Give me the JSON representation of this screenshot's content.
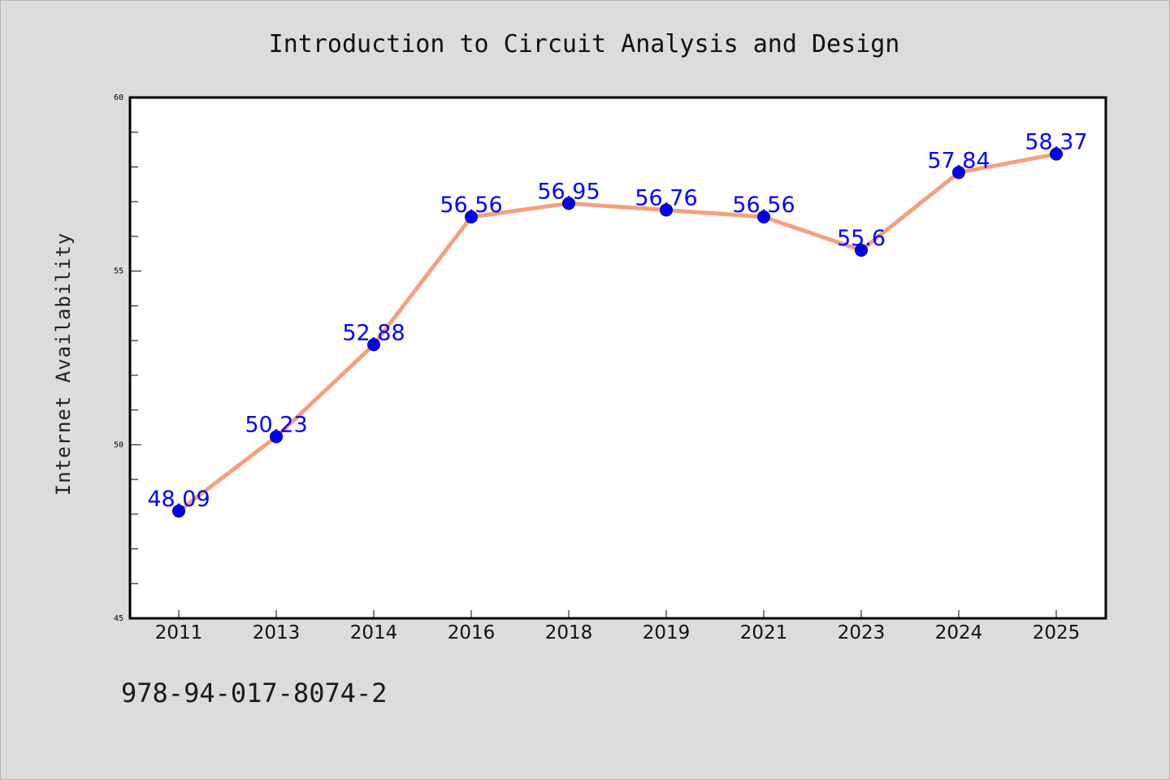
{
  "chart_data": {
    "type": "line",
    "title": "Introduction to Circuit Analysis and Design",
    "xlabel": "",
    "ylabel": "Internet Availability",
    "categories": [
      "2011",
      "2013",
      "2014",
      "2016",
      "2018",
      "2019",
      "2021",
      "2023",
      "2024",
      "2025"
    ],
    "series": [
      {
        "values": [
          48.09,
          50.23,
          52.88,
          56.56,
          56.95,
          56.76,
          56.56,
          55.6,
          57.84,
          58.37
        ],
        "data_labels": [
          "48.09",
          "50.23",
          "52.88",
          "56.56",
          "56.95",
          "56.76",
          "56.56",
          "55.6",
          "57.84",
          "58.37"
        ],
        "line_color": "#f4a07e",
        "marker_color": "#0000ee",
        "label_color": "#0000ff"
      }
    ],
    "ylim": [
      45,
      60
    ],
    "yticks": [
      "45",
      "50",
      "55",
      "60"
    ],
    "grid": false,
    "legend": "none"
  },
  "footer": {
    "isbn": "978-94-017-8074-2"
  },
  "colors": {
    "background": "#dcdcdc",
    "plot_background": "#ffffff",
    "axis": "#000000"
  }
}
